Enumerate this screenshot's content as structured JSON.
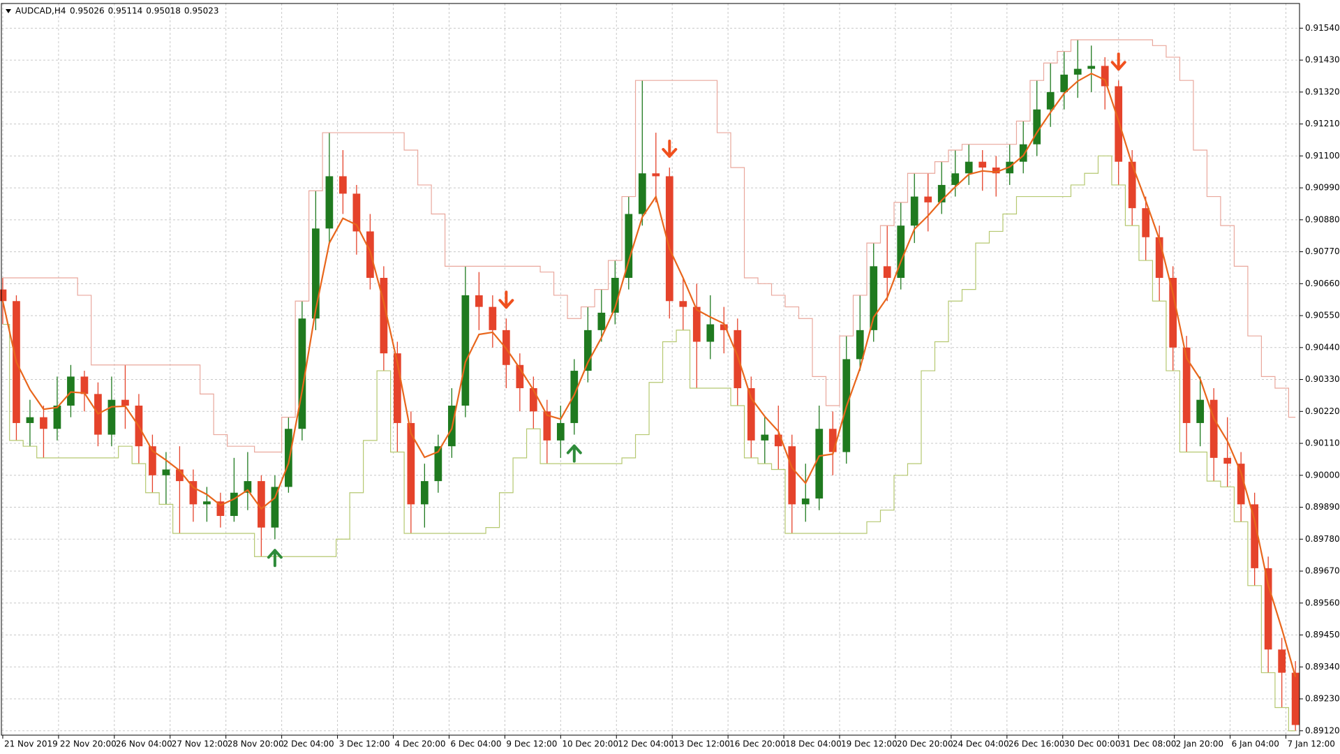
{
  "chart_data": {
    "type": "candlestick",
    "title": "AUDCAD,H4",
    "header_values": [
      0.95026,
      0.95114,
      0.95018,
      0.95023
    ],
    "open": [
      0.9064,
      0.906,
      0.9018,
      0.902,
      0.9016,
      0.9024,
      0.9034,
      0.9028,
      0.9014,
      0.9026,
      0.9024,
      0.901,
      0.9,
      0.9002,
      0.8998,
      0.899,
      0.8991,
      0.8986,
      0.8994,
      0.8998,
      0.8982,
      0.8996,
      0.9016,
      0.9054,
      0.9085,
      0.9103,
      0.9097,
      0.9084,
      0.9068,
      0.9042,
      0.9018,
      0.899,
      0.8998,
      0.901,
      0.9024,
      0.9062,
      0.9058,
      0.905,
      0.9038,
      0.903,
      0.9022,
      0.9012,
      0.9018,
      0.9036,
      0.905,
      0.9056,
      0.9068,
      0.909,
      0.9104,
      0.9103,
      0.906,
      0.9058,
      0.9046,
      0.9052,
      0.905,
      0.903,
      0.9012,
      0.9014,
      0.901,
      0.899,
      0.8992,
      0.9016,
      0.9008,
      0.904,
      0.905,
      0.9072,
      0.9068,
      0.9086,
      0.9096,
      0.9094,
      0.91,
      0.9104,
      0.9108,
      0.9106,
      0.9104,
      0.9108,
      0.9114,
      0.9126,
      0.9132,
      0.9138,
      0.914,
      0.9141,
      0.9134,
      0.9108,
      0.9092,
      0.9082,
      0.9068,
      0.9044,
      0.9018,
      0.9026,
      0.9006,
      0.9004,
      0.899,
      0.8968,
      0.894,
      0.8932
    ],
    "high": [
      0.9068,
      0.9062,
      0.9026,
      0.9024,
      0.9034,
      0.9038,
      0.9036,
      0.9032,
      0.9034,
      0.9038,
      0.9028,
      0.9014,
      0.9008,
      0.901,
      0.9002,
      0.8996,
      0.8994,
      0.9006,
      0.9008,
      0.9,
      0.9,
      0.902,
      0.906,
      0.9098,
      0.9118,
      0.9112,
      0.91,
      0.909,
      0.9072,
      0.9046,
      0.9022,
      0.9004,
      0.9014,
      0.903,
      0.9072,
      0.907,
      0.9062,
      0.9054,
      0.9042,
      0.9034,
      0.9026,
      0.9024,
      0.904,
      0.9058,
      0.9064,
      0.9074,
      0.9096,
      0.9136,
      0.9118,
      0.9106,
      0.9068,
      0.9066,
      0.9062,
      0.9058,
      0.9054,
      0.9034,
      0.902,
      0.9024,
      0.9014,
      0.9004,
      0.9024,
      0.9022,
      0.9048,
      0.9062,
      0.908,
      0.9086,
      0.9094,
      0.9104,
      0.9104,
      0.9108,
      0.9112,
      0.9114,
      0.9112,
      0.911,
      0.9114,
      0.9122,
      0.9136,
      0.9142,
      0.9146,
      0.915,
      0.9148,
      0.9144,
      0.9136,
      0.9112,
      0.9096,
      0.9086,
      0.9072,
      0.9048,
      0.9034,
      0.903,
      0.902,
      0.9008,
      0.8994,
      0.8972,
      0.8944,
      0.8936
    ],
    "low": [
      0.9052,
      0.9012,
      0.901,
      0.9006,
      0.9012,
      0.902,
      0.9022,
      0.901,
      0.901,
      0.9016,
      0.9004,
      0.8994,
      0.899,
      0.898,
      0.8984,
      0.8984,
      0.8982,
      0.8984,
      0.8988,
      0.8972,
      0.8978,
      0.8994,
      0.9012,
      0.905,
      0.908,
      0.909,
      0.9076,
      0.9064,
      0.9036,
      0.9008,
      0.898,
      0.8982,
      0.8994,
      0.9006,
      0.902,
      0.905,
      0.9044,
      0.903,
      0.9022,
      0.9016,
      0.9004,
      0.9006,
      0.9014,
      0.9032,
      0.9046,
      0.9052,
      0.9064,
      0.9086,
      0.9094,
      0.9054,
      0.905,
      0.903,
      0.904,
      0.9042,
      0.9024,
      0.9006,
      0.9004,
      0.9002,
      0.898,
      0.8984,
      0.8988,
      0.9,
      0.9004,
      0.9036,
      0.9046,
      0.906,
      0.9064,
      0.908,
      0.9084,
      0.909,
      0.9096,
      0.91,
      0.9098,
      0.9096,
      0.91,
      0.9104,
      0.911,
      0.912,
      0.9126,
      0.913,
      0.9132,
      0.9126,
      0.91,
      0.9086,
      0.9074,
      0.906,
      0.9036,
      0.9008,
      0.901,
      0.8998,
      0.8996,
      0.8984,
      0.8962,
      0.8932,
      0.892,
      0.8912
    ],
    "close": [
      0.906,
      0.9018,
      0.902,
      0.9016,
      0.9024,
      0.9034,
      0.9028,
      0.9014,
      0.9026,
      0.9024,
      0.901,
      0.9,
      0.9002,
      0.8998,
      0.899,
      0.8991,
      0.8986,
      0.8994,
      0.8998,
      0.8982,
      0.8996,
      0.9016,
      0.9054,
      0.9085,
      0.9103,
      0.9097,
      0.9084,
      0.9068,
      0.9042,
      0.9018,
      0.899,
      0.8998,
      0.901,
      0.9024,
      0.9062,
      0.9058,
      0.905,
      0.9038,
      0.903,
      0.9022,
      0.9012,
      0.9018,
      0.9036,
      0.905,
      0.9056,
      0.9068,
      0.909,
      0.9104,
      0.9103,
      0.906,
      0.9058,
      0.9046,
      0.9052,
      0.905,
      0.903,
      0.9012,
      0.9014,
      0.901,
      0.899,
      0.8992,
      0.9016,
      0.9008,
      0.904,
      0.905,
      0.9072,
      0.9068,
      0.9086,
      0.9096,
      0.9094,
      0.91,
      0.9104,
      0.9108,
      0.9106,
      0.9104,
      0.9108,
      0.9114,
      0.9126,
      0.9132,
      0.9138,
      0.914,
      0.9141,
      0.9134,
      0.9108,
      0.9092,
      0.9082,
      0.9068,
      0.9044,
      0.9018,
      0.9026,
      0.9006,
      0.9004,
      0.899,
      0.8968,
      0.894,
      0.8932,
      0.8914
    ],
    "bull_color": "#1f7a1f",
    "bear_color": "#e5432b",
    "buy_signals": [
      20,
      42
    ],
    "sell_signals": [
      37,
      49,
      82
    ],
    "buy_color": "#2e8b3a",
    "sell_color": "#f0501e",
    "indicators": [
      {
        "kind": "lowest",
        "period": 6,
        "color": "#b5c870"
      },
      {
        "kind": "highest",
        "period": 6,
        "color": "#e9a79c"
      },
      {
        "kind": "ema",
        "period": 3,
        "color": "#e8661c"
      }
    ],
    "xlim": [
      -0.1,
      95.3
    ],
    "xticks": [
      {
        "value": 0,
        "label": "21 Nov 2019"
      },
      {
        "value": 4.1,
        "label": "22 Nov 20:00"
      },
      {
        "value": 8.2,
        "label": "26 Nov 04:00"
      },
      {
        "value": 12.3,
        "label": "27 Nov 12:00"
      },
      {
        "value": 16.4,
        "label": "28 Nov 20:00"
      },
      {
        "value": 20.5,
        "label": "2 Dec 04:00"
      },
      {
        "value": 24.6,
        "label": "3 Dec 12:00"
      },
      {
        "value": 28.7,
        "label": "4 Dec 20:00"
      },
      {
        "value": 32.8,
        "label": "6 Dec 04:00"
      },
      {
        "value": 36.9,
        "label": "9 Dec 12:00"
      },
      {
        "value": 41,
        "label": "10 Dec 20:00"
      },
      {
        "value": 45.1,
        "label": "12 Dec 04:00"
      },
      {
        "value": 49.2,
        "label": "13 Dec 12:00"
      },
      {
        "value": 53.3,
        "label": "16 Dec 20:00"
      },
      {
        "value": 57.4,
        "label": "18 Dec 04:00"
      },
      {
        "value": 61.5,
        "label": "19 Dec 12:00"
      },
      {
        "value": 65.6,
        "label": "20 Dec 20:00"
      },
      {
        "value": 69.7,
        "label": "24 Dec 04:00"
      },
      {
        "value": 73.8,
        "label": "26 Dec 16:00"
      },
      {
        "value": 77.9,
        "label": "30 Dec 00:00"
      },
      {
        "value": 82,
        "label": "31 Dec 08:00"
      },
      {
        "value": 86.1,
        "label": "2 Jan 20:00"
      },
      {
        "value": 90.2,
        "label": "6 Jan 04:00"
      },
      {
        "value": 94.3,
        "label": "7 Jan 12:00"
      }
    ],
    "ylim": [
      0.89105,
      0.91625
    ],
    "yticks": [
      {
        "value": 0.9154,
        "label": "0.91540"
      },
      {
        "value": 0.9143,
        "label": "0.91430"
      },
      {
        "value": 0.9132,
        "label": "0.91320"
      },
      {
        "value": 0.9121,
        "label": "0.91210"
      },
      {
        "value": 0.911,
        "label": "0.91100"
      },
      {
        "value": 0.9099,
        "label": "0.90990"
      },
      {
        "value": 0.9088,
        "label": "0.90880"
      },
      {
        "value": 0.9077,
        "label": "0.90770"
      },
      {
        "value": 0.9066,
        "label": "0.90660"
      },
      {
        "value": 0.9055,
        "label": "0.90550"
      },
      {
        "value": 0.9044,
        "label": "0.90440"
      },
      {
        "value": 0.9033,
        "label": "0.90330"
      },
      {
        "value": 0.9022,
        "label": "0.90220"
      },
      {
        "value": 0.9011,
        "label": "0.90110"
      },
      {
        "value": 0.9,
        "label": "0.90000"
      },
      {
        "value": 0.8989,
        "label": "0.89890"
      },
      {
        "value": 0.8978,
        "label": "0.89780"
      },
      {
        "value": 0.8967,
        "label": "0.89670"
      },
      {
        "value": 0.8956,
        "label": "0.89560"
      },
      {
        "value": 0.8945,
        "label": "0.89450"
      },
      {
        "value": 0.8934,
        "label": "0.89340"
      },
      {
        "value": 0.8923,
        "label": "0.89230"
      },
      {
        "value": 0.8912,
        "label": "0.89120"
      }
    ],
    "grid": true
  }
}
